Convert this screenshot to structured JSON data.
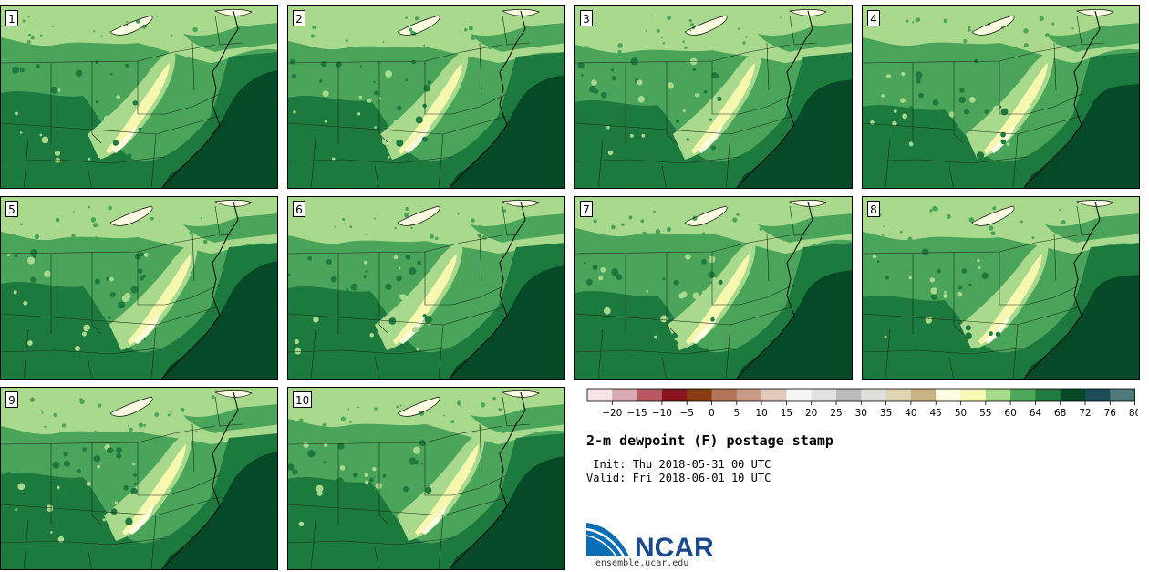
{
  "panels": [
    {
      "label": "1"
    },
    {
      "label": "2"
    },
    {
      "label": "3"
    },
    {
      "label": "4"
    },
    {
      "label": "5"
    },
    {
      "label": "6"
    },
    {
      "label": "7"
    },
    {
      "label": "8"
    },
    {
      "label": "9"
    },
    {
      "label": "10"
    }
  ],
  "legend": {
    "ticks": [
      "-20",
      "-15",
      "-10",
      "-5",
      "0",
      "5",
      "10",
      "15",
      "20",
      "25",
      "30",
      "35",
      "40",
      "45",
      "50",
      "55",
      "60",
      "64",
      "68",
      "72",
      "76",
      "80"
    ],
    "colors": [
      "#f6e4e8",
      "#d7a9b3",
      "#b75862",
      "#8a1520",
      "#8a3c12",
      "#b27658",
      "#c69c89",
      "#e3c9bd",
      "#f6f6f6",
      "#e2e2e2",
      "#bababa",
      "#dfe0da",
      "#dfd5b5",
      "#c9b283",
      "#fdfde4",
      "#f7f8b3",
      "#a7d98a",
      "#4ea85c",
      "#1f7b40",
      "#074827",
      "#1d4d57",
      "#4f7b7d"
    ]
  },
  "title": "2-m dewpoint (F) postage stamp",
  "init": " Init: Thu 2018-05-31 00 UTC",
  "valid": "Valid: Fri 2018-06-01 10 UTC",
  "footer": "ensemble.ucar.edu",
  "logo_text": "NCAR"
}
